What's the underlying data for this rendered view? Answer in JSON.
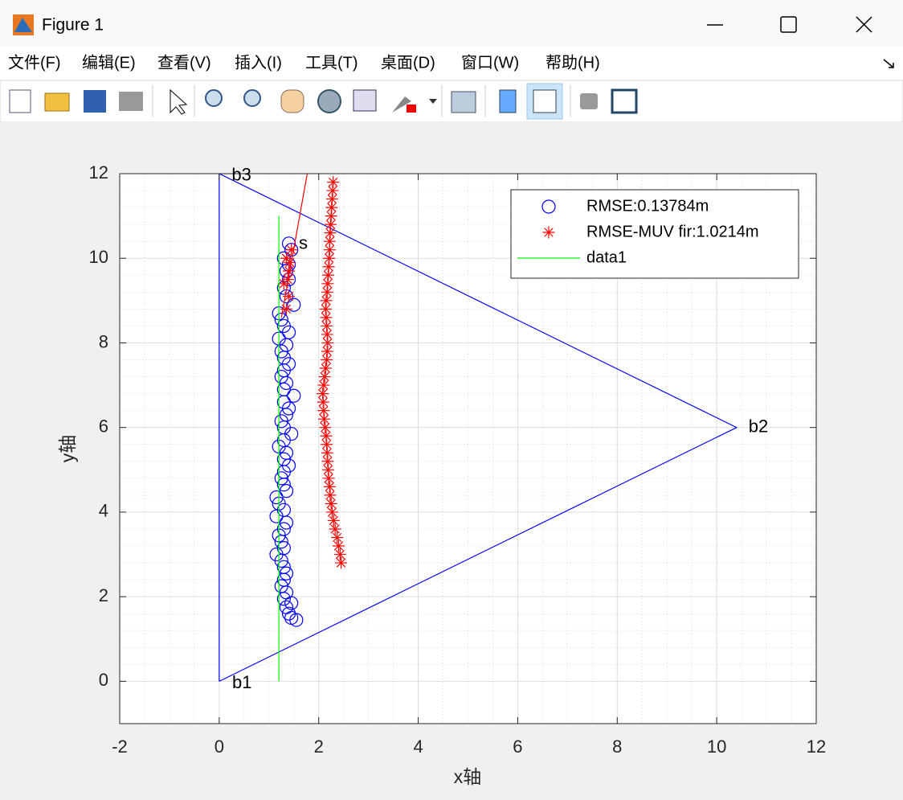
{
  "window": {
    "title": "Figure 1",
    "menu": [
      "文件(F)",
      "编辑(E)",
      "查看(V)",
      "插入(I)",
      "工具(T)",
      "桌面(D)",
      "窗口(W)",
      "帮助(H)"
    ]
  },
  "chart_data": {
    "type": "line",
    "xlabel": "x轴",
    "ylabel": "y轴",
    "xlim": [
      -2,
      12
    ],
    "ylim": [
      -1,
      12
    ],
    "xticks": [
      -2,
      0,
      2,
      4,
      6,
      8,
      10,
      12
    ],
    "yticks": [
      0,
      2,
      4,
      6,
      8,
      10,
      12
    ],
    "grid": true,
    "minor_grid": true,
    "legend": "northeast",
    "annotations": [
      {
        "text": "b1",
        "x": 0.26,
        "y": -0.05
      },
      {
        "text": "b2",
        "x": 10.64,
        "y": 6
      },
      {
        "text": "b3",
        "x": 0.25,
        "y": 11.95
      },
      {
        "text": "s",
        "x": 1.6,
        "y": 10.33
      }
    ],
    "series": [
      {
        "color": "#0000ff",
        "marker": "none",
        "line": true,
        "x": [
          0,
          10.4,
          0,
          0
        ],
        "values": [
          0,
          6,
          12,
          0
        ]
      },
      {
        "name": "RMSE:0.13784m",
        "color": "#0000ff",
        "marker": "o",
        "line": false,
        "x": [
          1.55,
          1.45,
          1.4,
          1.35,
          1.45,
          1.3,
          1.35,
          1.25,
          1.3,
          1.35,
          1.3,
          1.25,
          1.15,
          1.3,
          1.25,
          1.2,
          1.3,
          1.35,
          1.15,
          1.3,
          1.2,
          1.15,
          1.35,
          1.3,
          1.25,
          1.3,
          1.4,
          1.3,
          1.35,
          1.2,
          1.3,
          1.45,
          1.3,
          1.25,
          1.35,
          1.4,
          1.3,
          1.5,
          1.3,
          1.35,
          1.25,
          1.3,
          1.4,
          1.3,
          1.25,
          1.35,
          1.2,
          1.4,
          1.3,
          1.25,
          1.2,
          1.5,
          1.35,
          1.3,
          1.4,
          1.35,
          1.4,
          1.3,
          1.45,
          1.4
        ],
        "values": [
          1.45,
          1.5,
          1.6,
          1.75,
          1.85,
          1.95,
          2.1,
          2.25,
          2.4,
          2.55,
          2.7,
          2.85,
          3.0,
          3.15,
          3.3,
          3.45,
          3.6,
          3.75,
          3.9,
          4.05,
          4.2,
          4.35,
          4.5,
          4.65,
          4.8,
          4.95,
          5.1,
          5.25,
          5.4,
          5.55,
          5.7,
          5.85,
          6.0,
          6.15,
          6.3,
          6.45,
          6.6,
          6.75,
          6.9,
          7.05,
          7.2,
          7.35,
          7.5,
          7.65,
          7.8,
          7.95,
          8.1,
          8.25,
          8.4,
          8.55,
          8.7,
          8.9,
          9.1,
          9.3,
          9.5,
          9.7,
          9.85,
          10.0,
          10.2,
          10.35
        ]
      },
      {
        "name": "RMSE-MUV fir:1.0214m",
        "color": "#ff0000",
        "marker": "*",
        "line": false,
        "x": [
          2.45,
          2.43,
          2.4,
          2.37,
          2.33,
          2.3,
          2.27,
          2.25,
          2.23,
          2.22,
          2.2,
          2.19,
          2.18,
          2.17,
          2.16,
          2.15,
          2.13,
          2.11,
          2.1,
          2.09,
          2.08,
          2.1,
          2.12,
          2.14,
          2.16,
          2.17,
          2.18,
          2.17,
          2.16,
          2.15,
          2.14,
          2.15,
          2.17,
          2.18,
          2.19,
          2.2,
          2.21,
          2.22,
          2.22,
          2.23,
          2.24,
          2.25,
          2.26,
          2.27,
          2.28,
          2.29,
          1.35,
          1.4,
          1.3,
          1.4,
          1.35,
          1.45,
          1.38,
          1.42
        ],
        "values": [
          2.8,
          3.0,
          3.2,
          3.4,
          3.6,
          3.8,
          4.0,
          4.2,
          4.4,
          4.6,
          4.8,
          5.0,
          5.2,
          5.4,
          5.6,
          5.8,
          6.0,
          6.2,
          6.4,
          6.6,
          6.8,
          7.0,
          7.2,
          7.4,
          7.6,
          7.8,
          8.0,
          8.2,
          8.4,
          8.6,
          8.8,
          9.0,
          9.2,
          9.4,
          9.6,
          9.8,
          10.0,
          10.2,
          10.4,
          10.6,
          10.8,
          11.0,
          11.2,
          11.4,
          11.6,
          11.8,
          8.8,
          9.1,
          9.4,
          9.7,
          10.0,
          10.2,
          9.5,
          9.9
        ]
      },
      {
        "name": "data1",
        "color": "#00ff00",
        "marker": "none",
        "line": true,
        "x": [
          1.2,
          1.2
        ],
        "values": [
          0,
          11
        ]
      },
      {
        "color": "#ff0000",
        "marker": "none",
        "line": true,
        "x": [
          1.25,
          1.77
        ],
        "values": [
          8.6,
          12
        ]
      }
    ]
  }
}
